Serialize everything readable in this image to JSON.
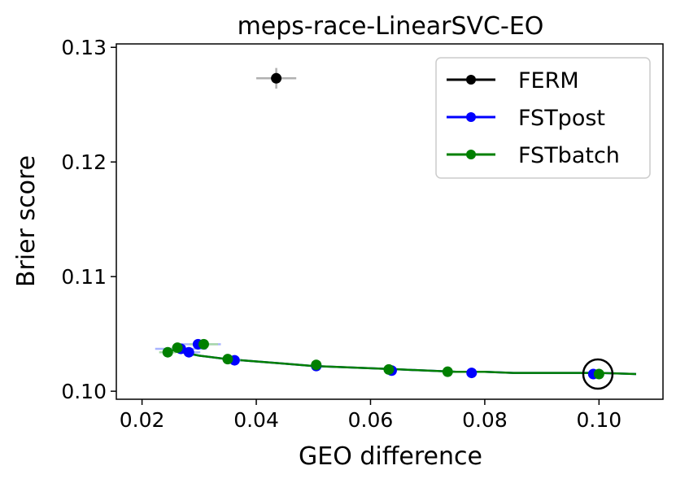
{
  "chart_data": {
    "type": "scatter",
    "title": "meps-race-LinearSVC-EO",
    "xlabel": "GEO difference",
    "ylabel": "Brier score",
    "xlim": [
      0.0155,
      0.1112
    ],
    "ylim": [
      0.0993,
      0.1303
    ],
    "xticks": [
      0.02,
      0.04,
      0.06,
      0.08,
      0.1
    ],
    "xtick_labels": [
      "0.02",
      "0.04",
      "0.06",
      "0.08",
      "0.10"
    ],
    "yticks": [
      0.1,
      0.11,
      0.12,
      0.13
    ],
    "ytick_labels": [
      "0.10",
      "0.11",
      "0.12",
      "0.13"
    ],
    "legend_position": "top-right",
    "legend": [
      "FERM",
      "FSTpost",
      "FSTbatch"
    ],
    "series": [
      {
        "name": "FERM",
        "color": "#000000",
        "errorbar_color": "#b0b0b0",
        "points": [
          {
            "x": 0.0435,
            "y": 0.1273,
            "xerr": 0.0035,
            "yerr": 0.0009
          }
        ]
      },
      {
        "name": "FSTpost",
        "color": "#0000ff",
        "errorbar_color": "#a8b4ff",
        "points": [
          {
            "x": 0.0268,
            "y": 0.1037,
            "xerr": 0.0045,
            "yerr": 0.0004
          },
          {
            "x": 0.0282,
            "y": 0.1034,
            "xerr": 0.002,
            "yerr": 0.0003
          },
          {
            "x": 0.0298,
            "y": 0.1041,
            "xerr": 0.004,
            "yerr": 0.0004
          },
          {
            "x": 0.0362,
            "y": 0.1027,
            "xerr": 0.001,
            "yerr": 0.0003
          },
          {
            "x": 0.0505,
            "y": 0.1022,
            "xerr": 0.0008,
            "yerr": 0.0003
          },
          {
            "x": 0.0637,
            "y": 0.1018,
            "xerr": 0.0007,
            "yerr": 0.0003
          },
          {
            "x": 0.0777,
            "y": 0.1016,
            "xerr": 0.0006,
            "yerr": 0.0003
          },
          {
            "x": 0.099,
            "y": 0.1015,
            "xerr": 0.0006,
            "yerr": 0.0003
          }
        ]
      },
      {
        "name": "FSTbatch",
        "color": "#008000",
        "errorbar_color": "#a8d8a8",
        "points": [
          {
            "x": 0.0245,
            "y": 0.1034,
            "xerr": 0.0015,
            "yerr": 0.0003
          },
          {
            "x": 0.0262,
            "y": 0.1038,
            "xerr": 0.001,
            "yerr": 0.0003
          },
          {
            "x": 0.0308,
            "y": 0.1041,
            "xerr": 0.0025,
            "yerr": 0.0003
          },
          {
            "x": 0.035,
            "y": 0.1028,
            "xerr": 0.0007,
            "yerr": 0.0003
          },
          {
            "x": 0.0505,
            "y": 0.1023,
            "xerr": 0.0006,
            "yerr": 0.0004
          },
          {
            "x": 0.0632,
            "y": 0.1019,
            "xerr": 0.0006,
            "yerr": 0.0004
          },
          {
            "x": 0.0735,
            "y": 0.1017,
            "xerr": 0.0005,
            "yerr": 0.0004
          },
          {
            "x": 0.1,
            "y": 0.1015,
            "xerr": 0.0005,
            "yerr": 0.0004
          }
        ]
      }
    ],
    "curves": [
      {
        "name": "FSTpost-curve",
        "color": "#0000ff",
        "x": [
          0.025,
          0.027,
          0.03,
          0.035,
          0.04,
          0.045,
          0.05,
          0.055,
          0.06,
          0.065,
          0.07,
          0.075,
          0.08,
          0.085,
          0.09,
          0.095,
          0.1,
          0.1065
        ],
        "y": [
          0.1036,
          0.1034,
          0.1031,
          0.1028,
          0.1026,
          0.1024,
          0.1022,
          0.1021,
          0.102,
          0.1019,
          0.1018,
          0.1017,
          0.1017,
          0.1016,
          0.1016,
          0.1016,
          0.1016,
          0.1015
        ]
      },
      {
        "name": "FSTbatch-curve",
        "color": "#008000",
        "x": [
          0.025,
          0.027,
          0.03,
          0.035,
          0.04,
          0.045,
          0.05,
          0.055,
          0.06,
          0.065,
          0.07,
          0.075,
          0.08,
          0.085,
          0.09,
          0.095,
          0.1,
          0.1065
        ],
        "y": [
          0.1036,
          0.1034,
          0.1031,
          0.1028,
          0.1026,
          0.1024,
          0.1022,
          0.1021,
          0.102,
          0.1019,
          0.1018,
          0.1017,
          0.1017,
          0.1016,
          0.1016,
          0.1016,
          0.1016,
          0.1015
        ]
      }
    ],
    "annotation": {
      "type": "circle",
      "x": 0.0998,
      "y": 0.1015
    }
  }
}
